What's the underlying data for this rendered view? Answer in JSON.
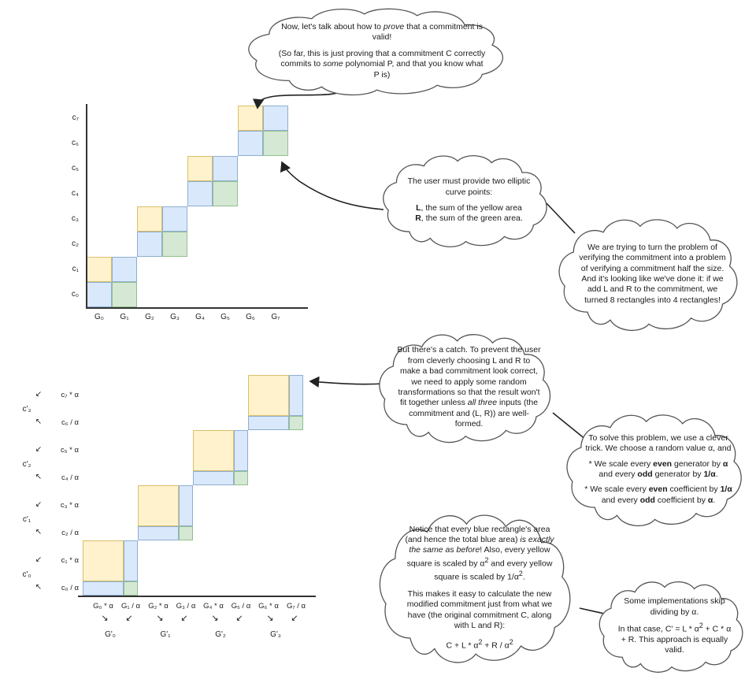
{
  "colors": {
    "yellow": "#fff2cc",
    "yellow_border": "#d9c06b",
    "blue": "#dae8fc",
    "blue_border": "#8eaed1",
    "green": "#d5e8d4",
    "green_border": "#93bf8f"
  },
  "clouds": {
    "intro": {
      "p1": "Now, let's talk about how to <i>prove</i> that a commitment is valid!",
      "p2": "(So far, this is just proving that a commitment C correctly commits to <i>some</i> polynomial P, and that you know what P is)"
    },
    "user_points": {
      "p1": "The user must provide two elliptic curve points:",
      "p2": "<b>L</b>, the sum of the yellow area<br><b>R</b>, the sum of the green area."
    },
    "half_size": {
      "p1": "We are trying to turn the problem of verifying the commitment into a problem of verifying a commitment half the size. And it's looking like we've done it: if we add L and R to the commitment, we turned 8 rectangles into 4 rectangles!"
    },
    "catch": {
      "p1": "But there's a catch. To prevent the user from cleverly choosing L and R to make a bad commitment look correct, we need to apply some random transformations so that the result won't fit together unless <i>all three</i> inputs (the commitment and (L, R)) are well-formed."
    },
    "trick": {
      "p1": "To solve this problem, we use a clever trick. We choose a random value α, and",
      "p2": "* We scale every <b>even</b> generator by <b>α</b> and every <b>odd</b> generator by <b>1/α</b>.",
      "p3": "* We scale every <b>even</b> coefficient by <b>1/α</b> and every <b>odd</b> coefficient by <b>α</b>."
    },
    "blue_area": {
      "p1": "Notice that every blue rectangle's area (and hence the total blue area) <i>is exactly the same as before</i>! Also, every yellow square is scaled by α<sup>2</sup> and every yellow square is scaled by 1/α<sup>2</sup>.",
      "p2": "This makes it easy to calculate the new modified commitment just from what we have (the original commitment C, along with L and R):",
      "p3": "C + L * α<sup>2</sup> + R / α<sup>2</sup>"
    },
    "skip": {
      "p1": "Some implementations skip dividing by α.",
      "p2": "In that case, C' = L * α<sup>2</sup> + C * α + R. This approach is equally valid."
    }
  },
  "chart1": {
    "y_labels": [
      "c₇",
      "c₆",
      "c₅",
      "c₄",
      "c₃",
      "c₂",
      "c₁",
      "c₀"
    ],
    "x_labels": [
      "G₀",
      "G₁",
      "G₂",
      "G₃",
      "G₄",
      "G₅",
      "G₆",
      "G₇"
    ],
    "cells": [
      {
        "col": 0,
        "row": 1,
        "color": "yellow"
      },
      {
        "col": 0,
        "row": 0,
        "color": "blue"
      },
      {
        "col": 1,
        "row": 1,
        "color": "blue"
      },
      {
        "col": 1,
        "row": 0,
        "color": "green"
      },
      {
        "col": 2,
        "row": 3,
        "color": "yellow"
      },
      {
        "col": 2,
        "row": 2,
        "color": "blue"
      },
      {
        "col": 3,
        "row": 3,
        "color": "blue"
      },
      {
        "col": 3,
        "row": 2,
        "color": "green"
      },
      {
        "col": 4,
        "row": 5,
        "color": "yellow"
      },
      {
        "col": 4,
        "row": 4,
        "color": "blue"
      },
      {
        "col": 5,
        "row": 5,
        "color": "blue"
      },
      {
        "col": 5,
        "row": 4,
        "color": "green"
      },
      {
        "col": 6,
        "row": 7,
        "color": "yellow"
      },
      {
        "col": 6,
        "row": 6,
        "color": "blue"
      },
      {
        "col": 7,
        "row": 7,
        "color": "blue"
      },
      {
        "col": 7,
        "row": 6,
        "color": "green"
      }
    ]
  },
  "chart2": {
    "y_labels": [
      "c₇ * α",
      "c₆ / α",
      "c₅ * α",
      "c₄ / α",
      "c₃ * α",
      "c₂ / α",
      "c₁ * α",
      "c₀ / α"
    ],
    "y_group_labels": [
      "c'₃",
      "c'₂",
      "c'₁",
      "c'₀"
    ],
    "x_labels": [
      "G₀ * α",
      "G₁ / α",
      "G₂ * α",
      "G₃ / α",
      "G₄ * α",
      "G₅ / α",
      "G₆ * α",
      "G₇ / α"
    ],
    "x_group_labels": [
      "G'₀",
      "G'₁",
      "G'₂",
      "G'₃"
    ],
    "cells": [
      {
        "col": 0,
        "row": 1,
        "color": "yellow"
      },
      {
        "col": 0,
        "row": 0,
        "color": "blue"
      },
      {
        "col": 1,
        "row": 1,
        "color": "blue"
      },
      {
        "col": 1,
        "row": 0,
        "color": "green"
      },
      {
        "col": 2,
        "row": 3,
        "color": "yellow"
      },
      {
        "col": 2,
        "row": 2,
        "color": "blue"
      },
      {
        "col": 3,
        "row": 3,
        "color": "blue"
      },
      {
        "col": 3,
        "row": 2,
        "color": "green"
      },
      {
        "col": 4,
        "row": 5,
        "color": "yellow"
      },
      {
        "col": 4,
        "row": 4,
        "color": "blue"
      },
      {
        "col": 5,
        "row": 5,
        "color": "blue"
      },
      {
        "col": 5,
        "row": 4,
        "color": "green"
      },
      {
        "col": 6,
        "row": 7,
        "color": "yellow"
      },
      {
        "col": 6,
        "row": 6,
        "color": "blue"
      },
      {
        "col": 7,
        "row": 7,
        "color": "blue"
      },
      {
        "col": 7,
        "row": 6,
        "color": "green"
      }
    ]
  }
}
